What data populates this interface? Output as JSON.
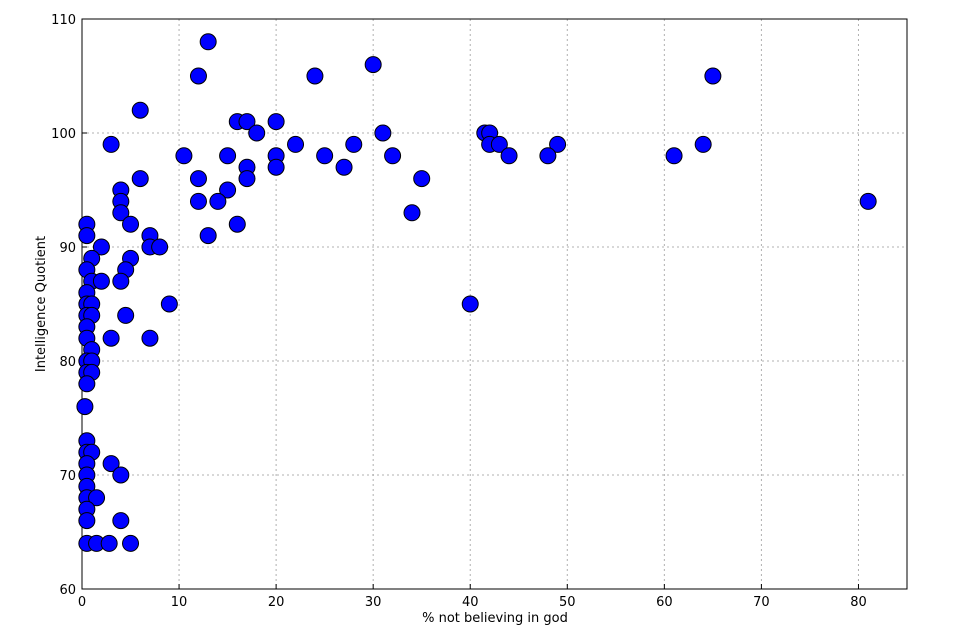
{
  "chart_data": {
    "type": "scatter",
    "x_label": "% not believing in god",
    "y_label": "Intelligence Quotient",
    "x": [
      13,
      12,
      24,
      30,
      65,
      6,
      16,
      17,
      20,
      18,
      31,
      41.5,
      42,
      3,
      22,
      28,
      42,
      43,
      49,
      64,
      10.5,
      15,
      20,
      25,
      32,
      44,
      48,
      61,
      17,
      20,
      27,
      6,
      12,
      17,
      35,
      4,
      15,
      4,
      12,
      14,
      81,
      4,
      34,
      0.5,
      5,
      16,
      0.5,
      7,
      13,
      2,
      7,
      8,
      1,
      5,
      0.5,
      4.5,
      1,
      2,
      4,
      0.5,
      0.5,
      1,
      9,
      40,
      0.5,
      1,
      4.5,
      0.5,
      3,
      7,
      0.5,
      1,
      0.5,
      1,
      0.5,
      1,
      0.5,
      0.3,
      0.5,
      0.5,
      1,
      3,
      0.5,
      0.5,
      4,
      0.5,
      0.5,
      1.5,
      0.5,
      0.5,
      4,
      0.5,
      1.5,
      2.8,
      5
    ],
    "values": [
      108,
      105,
      105,
      106,
      105,
      102,
      101,
      101,
      101,
      100,
      100,
      100,
      100,
      99,
      99,
      99,
      99,
      99,
      99,
      99,
      98,
      98,
      98,
      98,
      98,
      98,
      98,
      98,
      97,
      97,
      97,
      96,
      96,
      96,
      96,
      95,
      95,
      94,
      94,
      94,
      94,
      93,
      93,
      92,
      92,
      92,
      91,
      91,
      91,
      90,
      90,
      90,
      89,
      89,
      88,
      88,
      87,
      87,
      87,
      86,
      85,
      85,
      85,
      85,
      84,
      84,
      84,
      83,
      82,
      82,
      82,
      81,
      80,
      80,
      79,
      79,
      78,
      76,
      73,
      72,
      72,
      71,
      71,
      70,
      70,
      69,
      68,
      68,
      67,
      66,
      66,
      64,
      64,
      64,
      64
    ],
    "color": "#0000ff",
    "xlim": [
      0,
      85
    ],
    "ylim": [
      60,
      110
    ],
    "xticks": [
      0,
      10,
      20,
      30,
      40,
      50,
      60,
      70,
      80
    ],
    "yticks": [
      60,
      70,
      80,
      90,
      100,
      110
    ],
    "grid": true
  }
}
